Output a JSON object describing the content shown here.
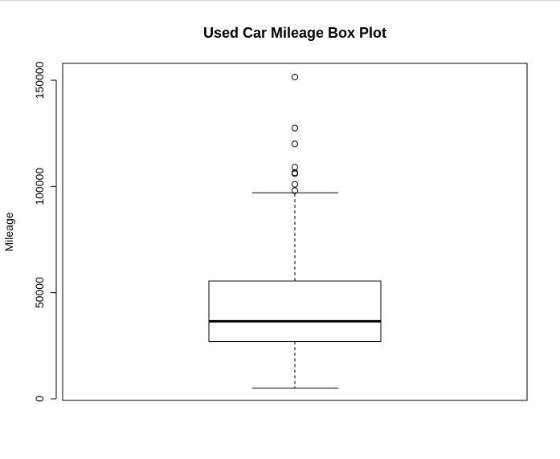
{
  "chart_data": {
    "type": "boxplot",
    "title": "Used Car Mileage Box Plot",
    "xlabel": "",
    "ylabel": "Mileage",
    "ylim": [
      0,
      151000
    ],
    "y_ticks": [
      0,
      50000,
      100000,
      150000
    ],
    "y_tick_labels": [
      "0",
      "50000",
      "100000",
      "150000"
    ],
    "grid": false,
    "legend": "none",
    "box": {
      "lower_whisker": 5000,
      "q1": 27000,
      "median": 36500,
      "q3": 55500,
      "upper_whisker": 97000
    },
    "outliers": [
      98000,
      101000,
      106000,
      106500,
      109000,
      120000,
      127500,
      151500
    ]
  }
}
